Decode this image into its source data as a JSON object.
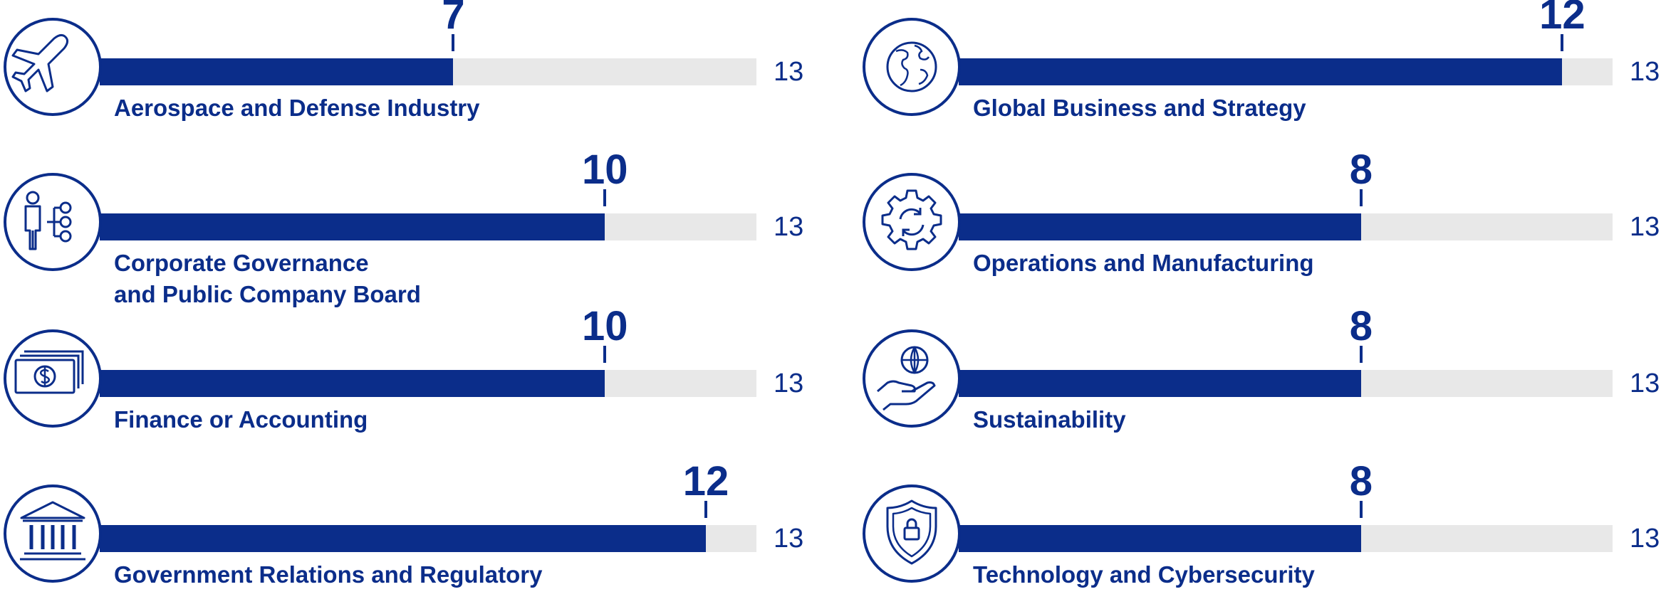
{
  "chart_data": {
    "type": "bar",
    "orientation": "horizontal",
    "max": 13,
    "xlim": [
      0,
      13
    ],
    "categories": [
      [
        "Aerospace and Defense Industry"
      ],
      [
        "Corporate Governance",
        "and Public Company Board"
      ],
      [
        "Finance or Accounting"
      ],
      [
        "Government Relations and Regulatory"
      ],
      [
        "Global Business and Strategy"
      ],
      [
        "Operations and Manufacturing"
      ],
      [
        "Sustainability"
      ],
      [
        "Technology and Cybersecurity"
      ]
    ],
    "values": [
      7,
      10,
      10,
      12,
      12,
      8,
      8,
      8
    ],
    "totals": [
      13,
      13,
      13,
      13,
      13,
      13,
      13,
      13
    ],
    "icons": [
      "airplane-icon",
      "org-chart-icon",
      "money-icon",
      "government-building-icon",
      "globe-icon",
      "gear-icon",
      "globe-hand-icon",
      "shield-lock-icon"
    ]
  },
  "colors": {
    "fill": "#0b2d8a",
    "track": "#e8e8e8",
    "text": "#0b2d8a"
  }
}
